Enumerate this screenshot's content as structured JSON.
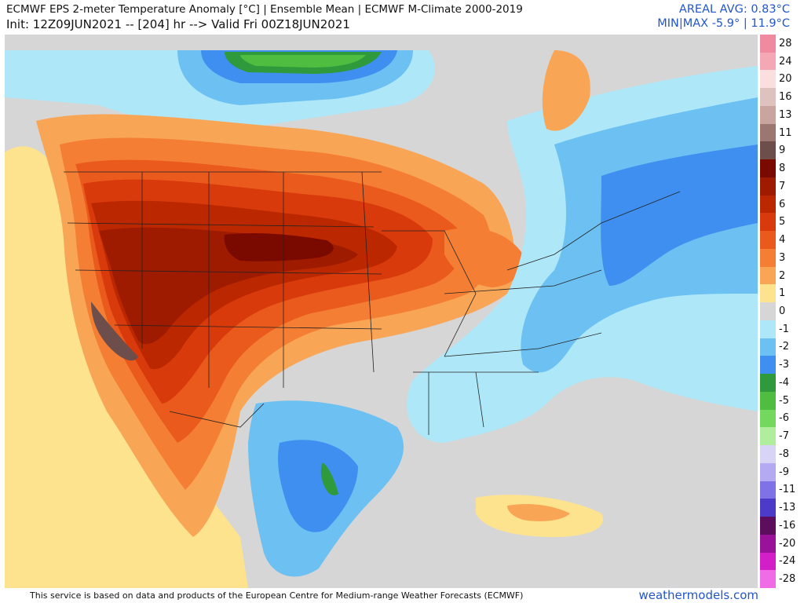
{
  "header": {
    "title": "ECMWF EPS 2-meter Temperature Anomaly [°C] | Ensemble Mean | ECMWF M-Climate 2000-2019",
    "init": "Init: 12Z09JUN2021 -- [204] hr --> Valid Fri 00Z18JUN2021",
    "areal_avg": "AREAL AVG: 0.83°C",
    "min_max": "MIN|MAX -5.9° | 11.9°C"
  },
  "legend": {
    "levels": [
      {
        "label": "28",
        "color": "#f08aa0"
      },
      {
        "label": "24",
        "color": "#f4a7b5"
      },
      {
        "label": "20",
        "color": "#fbdede"
      },
      {
        "label": "16",
        "color": "#ddc2be"
      },
      {
        "label": "13",
        "color": "#c9a59e"
      },
      {
        "label": "11",
        "color": "#9c7670"
      },
      {
        "label": "9",
        "color": "#6e4e4a"
      },
      {
        "label": "8",
        "color": "#7a0a00"
      },
      {
        "label": "7",
        "color": "#9e1b00"
      },
      {
        "label": "6",
        "color": "#bb2800"
      },
      {
        "label": "5",
        "color": "#d93a0c"
      },
      {
        "label": "4",
        "color": "#ea5a1c"
      },
      {
        "label": "3",
        "color": "#f47e34"
      },
      {
        "label": "2",
        "color": "#f9a556"
      },
      {
        "label": "1",
        "color": "#fde38e"
      },
      {
        "label": "0",
        "color": "#d6d6d6"
      },
      {
        "label": "-1",
        "color": "#aee8f8"
      },
      {
        "label": "-2",
        "color": "#6cc0f2"
      },
      {
        "label": "-3",
        "color": "#3f8ff0"
      },
      {
        "label": "-4",
        "color": "#2e9a3c"
      },
      {
        "label": "-5",
        "color": "#4fbd3f"
      },
      {
        "label": "-6",
        "color": "#75d85e"
      },
      {
        "label": "-7",
        "color": "#b0ee9e"
      },
      {
        "label": "-8",
        "color": "#d8d4f6"
      },
      {
        "label": "-9",
        "color": "#b4aaf2"
      },
      {
        "label": "-11",
        "color": "#7f72e6"
      },
      {
        "label": "-13",
        "color": "#4b3bc8"
      },
      {
        "label": "-16",
        "color": "#5c0e5c"
      },
      {
        "label": "-20",
        "color": "#9a129a"
      },
      {
        "label": "-24",
        "color": "#d21fc8"
      },
      {
        "label": "-28",
        "color": "#f06ce6"
      }
    ]
  },
  "footer": {
    "credit": "This service is based on data and products of the European Centre for Medium-range Weather Forecasts (ECMWF)",
    "site": "weathermodels.com"
  }
}
